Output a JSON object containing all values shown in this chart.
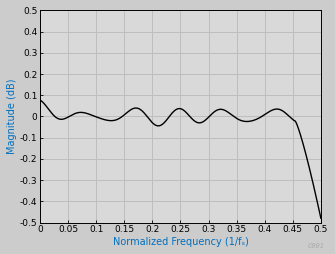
{
  "title": "",
  "xlabel": "Normalized Frequency (1/fₛ)",
  "ylabel": "Magnitude (dB)",
  "xlim": [
    0,
    0.5
  ],
  "ylim": [
    -0.5,
    0.5
  ],
  "xticks": [
    0,
    0.05,
    0.1,
    0.15,
    0.2,
    0.25,
    0.3,
    0.35,
    0.4,
    0.45,
    0.5
  ],
  "yticks": [
    -0.5,
    -0.4,
    -0.3,
    -0.2,
    -0.1,
    0.0,
    0.1,
    0.2,
    0.3,
    0.4,
    0.5
  ],
  "line_color": "#000000",
  "line_width": 1.0,
  "background_color": "#cccccc",
  "plot_bg_color": "#d9d9d9",
  "grid_color": "#bebebe",
  "label_color": "#0070c0",
  "watermark": "C001",
  "watermark_color": "#aaaaaa",
  "axis_label_fontsize": 7.0,
  "tick_fontsize": 6.5
}
